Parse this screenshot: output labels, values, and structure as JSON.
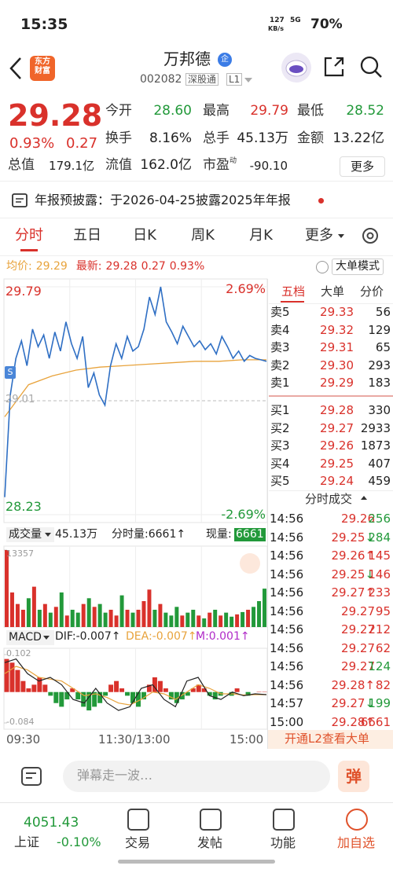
{
  "status": {
    "time": "15:35",
    "net_speed": "127",
    "net_unit": "KB/s",
    "signal": "5G",
    "battery": "70%"
  },
  "header": {
    "logo_top": "东方",
    "logo_bottom": "财富",
    "name": "万邦德",
    "badge": "企",
    "code": "002082",
    "market": "深股通",
    "level": "L1"
  },
  "quote": {
    "price": "29.28",
    "change_pct": "0.93%",
    "change": "0.27",
    "stats": [
      {
        "label": "今开",
        "value": "28.60",
        "color": "#22993a"
      },
      {
        "label": "最高",
        "value": "29.79",
        "color": "#d9312b"
      },
      {
        "label": "最低",
        "value": "28.52",
        "color": "#22993a"
      },
      {
        "label": "换手",
        "value": "8.16%",
        "color": "#222222"
      },
      {
        "label": "总手",
        "value": "45.13万",
        "color": "#222222"
      },
      {
        "label": "金额",
        "value": "13.22亿",
        "color": "#222222"
      },
      {
        "label": "总值",
        "value": "179.1亿",
        "color": "#222222"
      },
      {
        "label": "流值",
        "value": "162.0亿",
        "color": "#222222"
      },
      {
        "label": "市盈",
        "sup": "动",
        "value": "-90.10",
        "color": "#222222"
      }
    ],
    "more": "更多"
  },
  "notice": "年报预披露：于2026-04-25披露2025年年报",
  "tabs": [
    "分时",
    "五日",
    "日K",
    "周K",
    "月K",
    "更多"
  ],
  "info": {
    "avg_label": "均价:",
    "avg": "29.29",
    "last_label": "最新:",
    "last": "29.28",
    "change": "0.27",
    "change_pct": "0.93%",
    "mode": "大单模式"
  },
  "intraday": {
    "ylim": [
      28.23,
      29.79
    ],
    "yticks": [
      28.23,
      29.01,
      29.79
    ],
    "pct_labels": [
      "-2.69%",
      "2.69%"
    ],
    "marker": "S",
    "price": [
      28.35,
      29.05,
      29.3,
      29.42,
      29.25,
      29.5,
      29.38,
      29.46,
      29.3,
      29.48,
      29.35,
      29.55,
      29.4,
      29.3,
      29.45,
      29.1,
      29.2,
      29.05,
      28.98,
      29.25,
      29.4,
      29.3,
      29.45,
      29.35,
      29.38,
      29.5,
      29.72,
      29.6,
      29.79,
      29.55,
      29.48,
      29.4,
      29.52,
      29.45,
      29.38,
      29.42,
      29.36,
      29.4,
      29.33,
      29.45,
      29.38,
      29.3,
      29.35,
      29.28,
      29.32,
      29.3,
      29.29,
      29.28
    ],
    "avg": [
      28.9,
      29.12,
      29.18,
      29.22,
      29.24,
      29.25,
      29.26,
      29.27,
      29.28,
      29.28,
      29.29,
      29.29
    ],
    "line_color": "#2f6fc4",
    "avg_color": "#e8a33c"
  },
  "book": {
    "tabs": [
      "五档",
      "大单",
      "分价"
    ],
    "sells": [
      {
        "label": "卖5",
        "price": "29.33",
        "volume": "56"
      },
      {
        "label": "卖4",
        "price": "29.32",
        "volume": "129"
      },
      {
        "label": "卖3",
        "price": "29.31",
        "volume": "65"
      },
      {
        "label": "卖2",
        "price": "29.30",
        "volume": "293"
      },
      {
        "label": "卖1",
        "price": "29.29",
        "volume": "183"
      }
    ],
    "buys": [
      {
        "label": "买1",
        "price": "29.28",
        "volume": "330"
      },
      {
        "label": "买2",
        "price": "29.27",
        "volume": "2933"
      },
      {
        "label": "买3",
        "price": "29.26",
        "volume": "1873"
      },
      {
        "label": "买4",
        "price": "29.25",
        "volume": "407"
      },
      {
        "label": "买5",
        "price": "29.24",
        "volume": "459"
      }
    ],
    "trades_title": "分时成交",
    "trades": [
      {
        "time": "14:56",
        "price": "29.26",
        "volume": "256",
        "color": "#22993a"
      },
      {
        "time": "14:56",
        "price": "29.25",
        "arrow": "↓",
        "volume": "284",
        "color": "#22993a"
      },
      {
        "time": "14:56",
        "price": "29.26",
        "arrow": "↑",
        "volume": "145",
        "color": "#d9312b"
      },
      {
        "time": "14:56",
        "price": "29.25",
        "arrow": "↓",
        "volume": "146",
        "color": "#d9312b"
      },
      {
        "time": "14:56",
        "price": "29.27",
        "arrow": "↑",
        "volume": "233",
        "color": "#d9312b"
      },
      {
        "time": "14:56",
        "price": "29.27",
        "volume": "95",
        "color": "#d9312b"
      },
      {
        "time": "14:56",
        "price": "29.27",
        "volume": "212",
        "color": "#d9312b"
      },
      {
        "time": "14:56",
        "price": "29.27",
        "volume": "62",
        "color": "#d9312b"
      },
      {
        "time": "14:56",
        "price": "29.27",
        "volume": "124",
        "color": "#22993a"
      },
      {
        "time": "14:56",
        "price": "29.28",
        "arrow": "↑",
        "volume": "82",
        "color": "#d9312b"
      },
      {
        "time": "14:57",
        "price": "29.27",
        "arrow": "↓",
        "volume": "199",
        "color": "#22993a"
      },
      {
        "time": "15:00",
        "price": "29.28",
        "arrow": "↑",
        "volume": "6661",
        "color": "#d9312b"
      }
    ],
    "l2": "开通L2查看大单"
  },
  "volume": {
    "label": "成交量",
    "total": "45.13万",
    "period": "分时量:6661↑",
    "now_label": "现量:",
    "now": "6661",
    "ylim": [
      0,
      13357
    ],
    "yticks": [
      13357
    ],
    "values": [
      13357,
      6000,
      4000,
      3000,
      5000,
      7000,
      3000,
      4000,
      2500,
      3500,
      6000,
      2000,
      3000,
      2500,
      4000,
      5000,
      3500,
      4000,
      2500,
      3000,
      2000,
      5500,
      3000,
      2500,
      3000,
      4500,
      6500,
      3000,
      4000,
      2500,
      2000,
      3500,
      2000,
      2500,
      3000,
      2000,
      1500,
      2500,
      3000,
      2000,
      2500,
      1800,
      2200,
      2600,
      3000,
      3500,
      4500,
      6661
    ]
  },
  "macd": {
    "label": "MACD",
    "dif": "DIF:-0.007↑",
    "dea": "DEA:-0.007↑",
    "m": "M:0.001↑",
    "ylim": [
      -0.084,
      0.102
    ],
    "yticks": [
      -0.084,
      0.102
    ],
    "hist": [
      0.09,
      0.08,
      0.06,
      0.03,
      0.01,
      0.02,
      0.04,
      0.02,
      -0.01,
      -0.03,
      -0.04,
      -0.02,
      0.01,
      -0.02,
      -0.04,
      -0.05,
      -0.04,
      -0.03,
      -0.01,
      0.02,
      0.03,
      0.01,
      -0.01,
      -0.03,
      -0.04,
      -0.02,
      0.02,
      0.04,
      0.03,
      0.01,
      -0.02,
      -0.03,
      -0.02,
      -0.01,
      0.01,
      0.02,
      0.01,
      -0.01,
      -0.02,
      -0.01,
      0,
      -0.01,
      0.01,
      0,
      -0.01,
      0,
      0.001,
      0.001
    ],
    "dif_line": [
      0.08,
      0.09,
      0.05,
      0.03,
      0.04,
      0.02,
      -0.02,
      -0.03,
      0.01,
      -0.03,
      -0.05,
      -0.04,
      0.01,
      0.02,
      -0.02,
      -0.04,
      0.03,
      0.04,
      -0.01,
      -0.02,
      0,
      -0.01,
      -0.005,
      -0.007
    ],
    "dea_line": [
      0.05,
      0.07,
      0.06,
      0.04,
      0.035,
      0.03,
      0.01,
      -0.01,
      -0.005,
      -0.015,
      -0.03,
      -0.035,
      -0.02,
      0,
      -0.005,
      -0.02,
      0,
      0.02,
      0.01,
      -0.005,
      -0.005,
      -0.008,
      -0.007,
      -0.007
    ]
  },
  "time_axis": [
    "09:30",
    "11:30/13:00",
    "15:00"
  ],
  "comment": {
    "placeholder": "弹幕走一波…",
    "button": "弹"
  },
  "bottom": {
    "index_value": "4051.43",
    "index_name": "上证",
    "index_change": "-0.10%",
    "nav": [
      "交易",
      "发帖",
      "功能",
      "加自选"
    ]
  }
}
